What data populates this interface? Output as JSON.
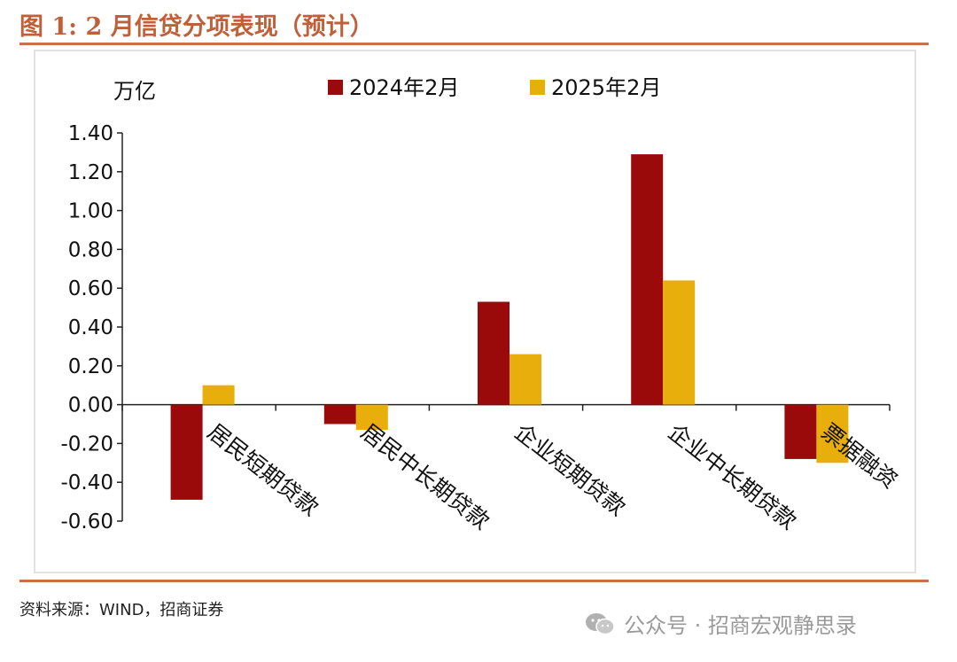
{
  "figure": {
    "title": "图 1:   2 月信贷分项表现（预计）",
    "source": "资料来源：WIND，招商证券",
    "watermark": "公众号 · 招商宏观静思录",
    "watermark_icon": "wechat-icon"
  },
  "chart_data": {
    "type": "bar",
    "title": "2 月信贷分项表现（预计）",
    "ylabel": "万亿",
    "xlabel": "",
    "ylim": [
      -0.6,
      1.4
    ],
    "yticks": [
      1.4,
      1.2,
      1.0,
      0.8,
      0.6,
      0.4,
      0.2,
      0.0,
      -0.2,
      -0.4,
      -0.6
    ],
    "ytick_labels": [
      "1.40",
      "1.20",
      "1.00",
      "0.80",
      "0.60",
      "0.40",
      "0.20",
      "0.00",
      "-0.20",
      "-0.40",
      "-0.60"
    ],
    "categories": [
      "居民短期贷款",
      "居民中长期贷款",
      "企业短期贷款",
      "企业中长期贷款",
      "票据融资"
    ],
    "series": [
      {
        "name": "2024年2月",
        "color": "#9b0a0a",
        "values": [
          -0.49,
          -0.1,
          0.53,
          1.29,
          -0.28
        ]
      },
      {
        "name": "2025年2月",
        "color": "#e8ae0c",
        "values": [
          0.1,
          -0.13,
          0.26,
          0.64,
          -0.3
        ]
      }
    ],
    "legend_position": "top",
    "grid": false
  }
}
